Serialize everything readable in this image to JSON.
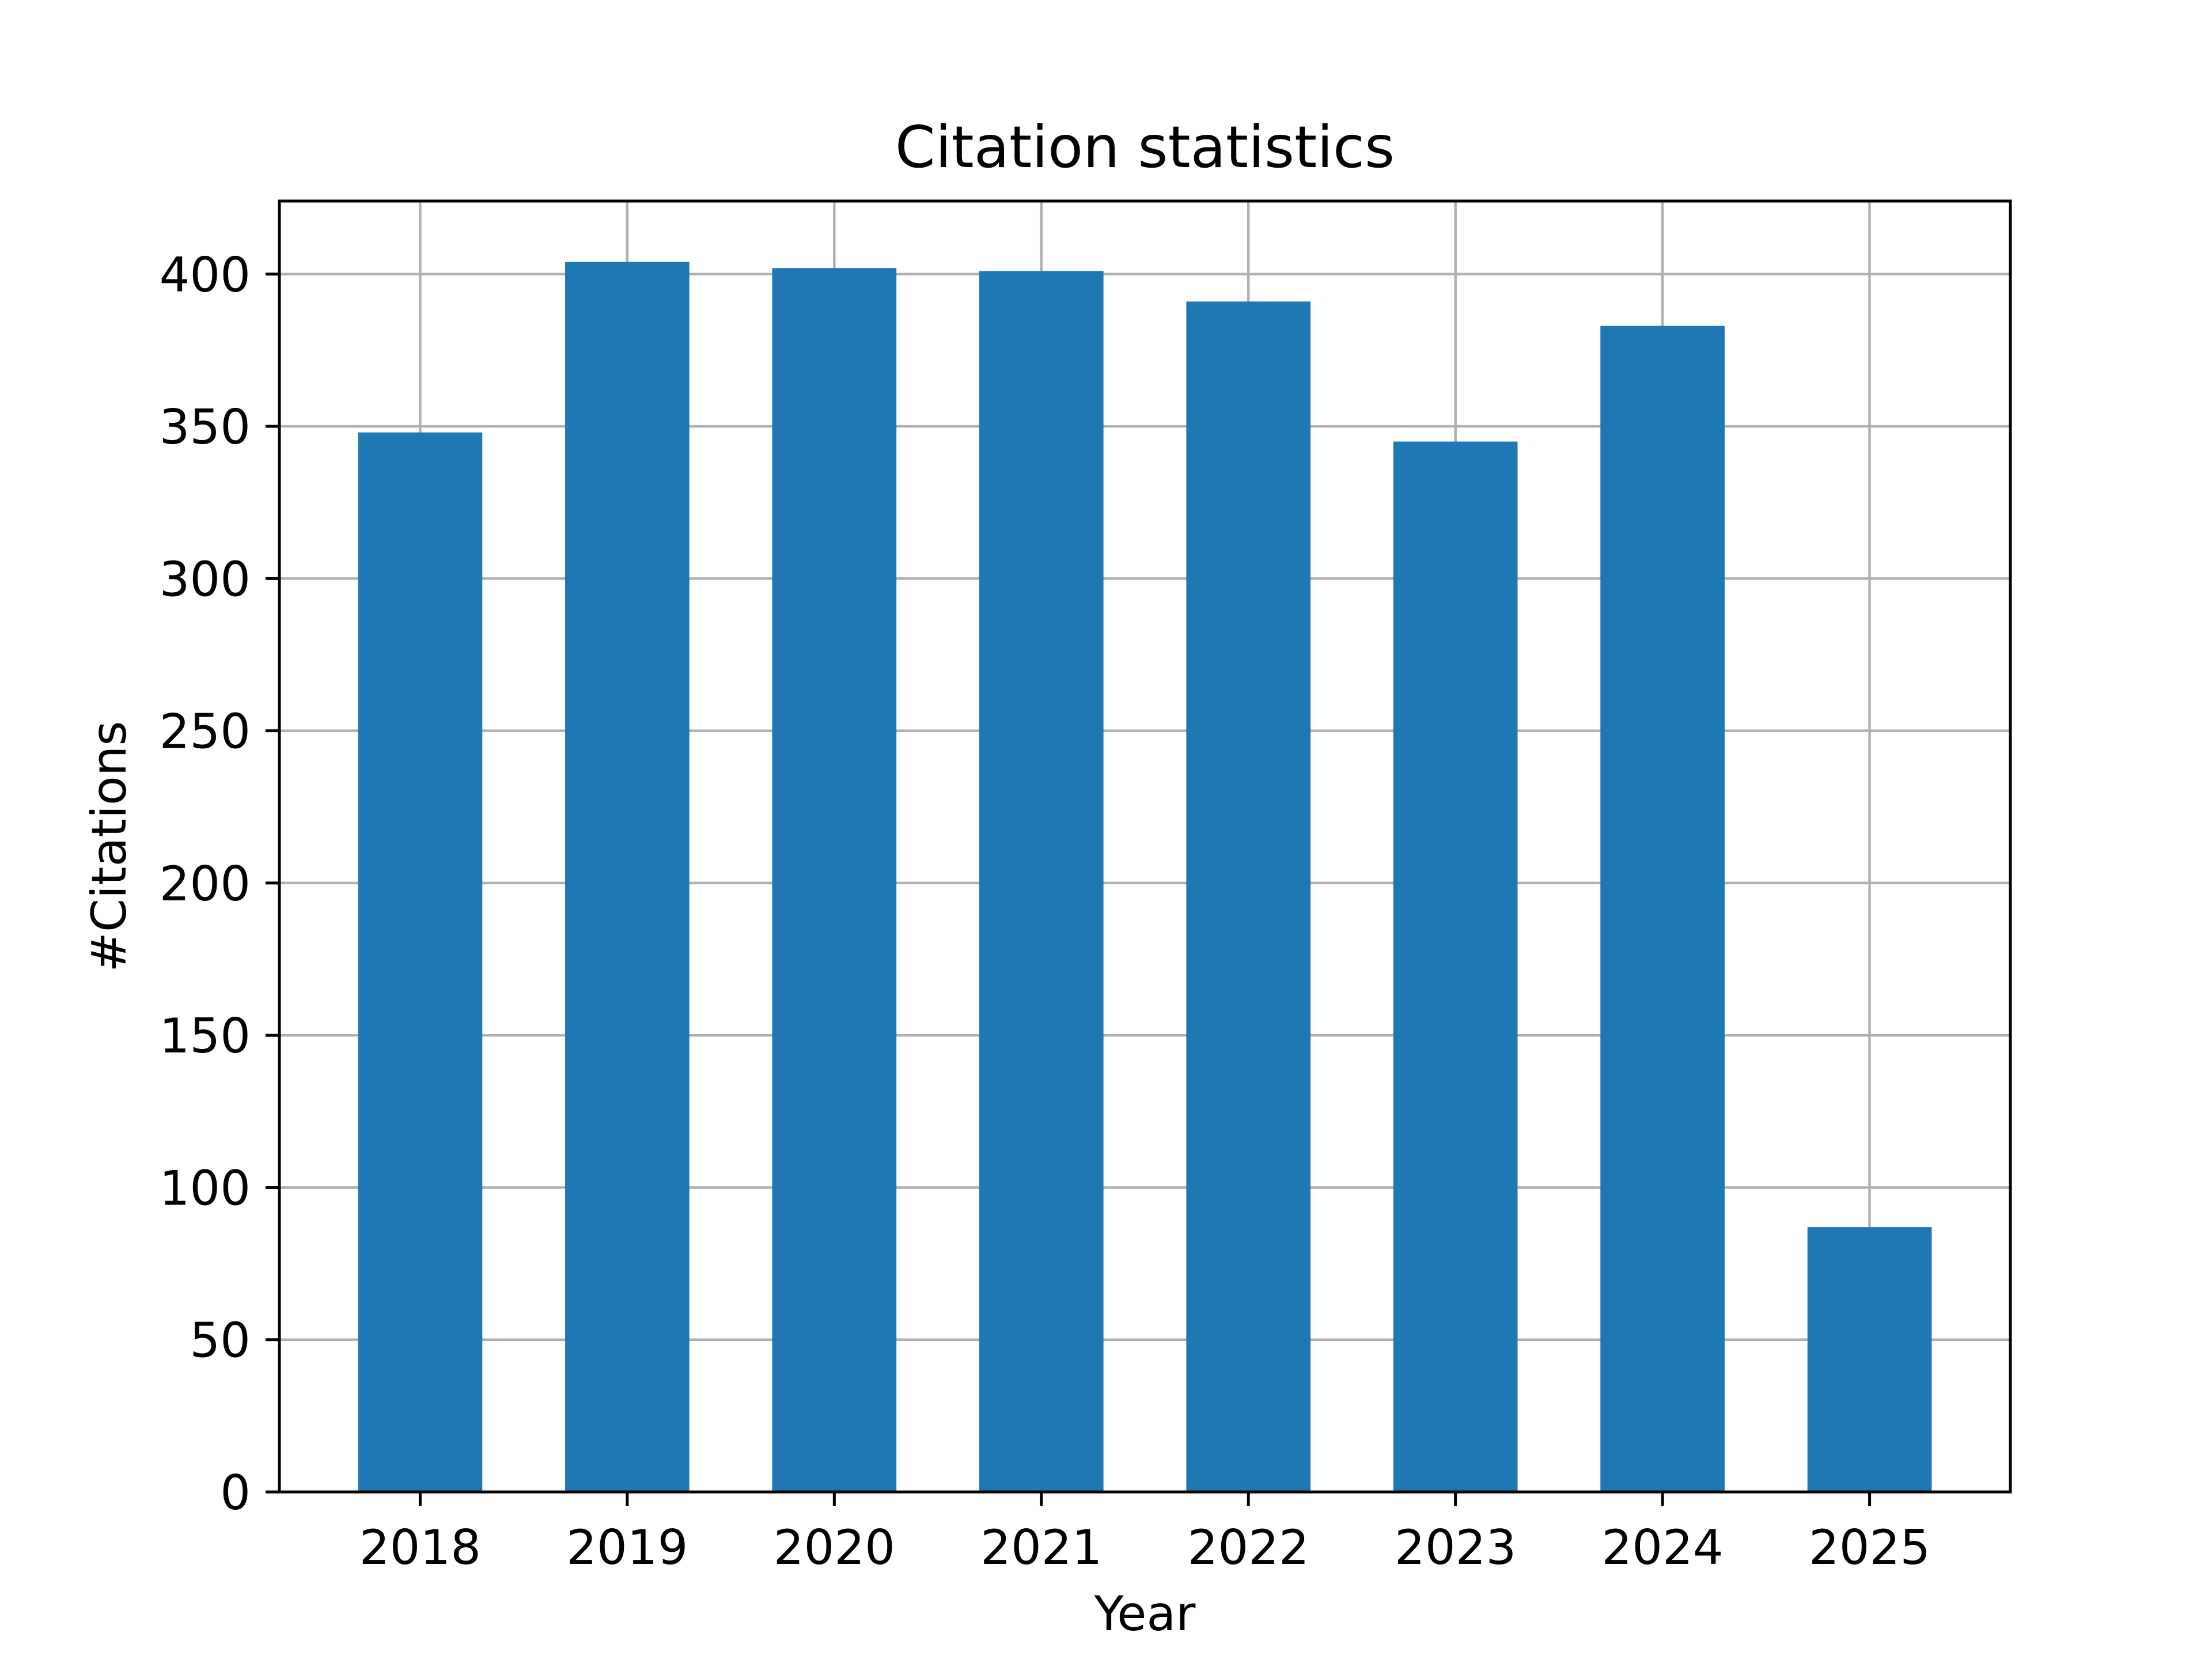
{
  "chart_data": {
    "type": "bar",
    "title": "Citation statistics",
    "xlabel": "Year",
    "ylabel": "#Citations",
    "categories": [
      "2018",
      "2019",
      "2020",
      "2021",
      "2022",
      "2023",
      "2024",
      "2025"
    ],
    "values": [
      348,
      404,
      402,
      401,
      391,
      345,
      383,
      87
    ],
    "ylim": [
      0,
      424
    ],
    "yticks": [
      0,
      50,
      100,
      150,
      200,
      250,
      300,
      350,
      400
    ],
    "grid": true,
    "legend": "none",
    "colors": {
      "bar": "#1f77b4",
      "grid": "#b0b0b0",
      "axis": "#000000"
    }
  }
}
